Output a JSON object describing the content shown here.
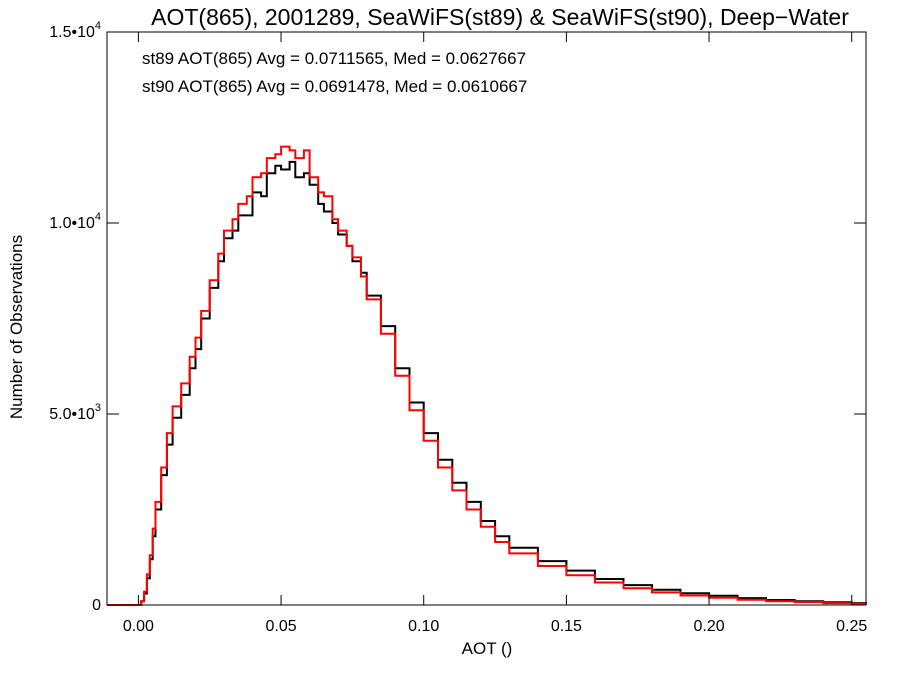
{
  "chart_data": {
    "type": "line",
    "title": "AOT(865), 2001289, SeaWiFS(st89) & SeaWiFS(st90), Deep−Water",
    "xlabel": "AOT ()",
    "ylabel": "Number of Observations",
    "xlim": [
      -0.011,
      0.255
    ],
    "ylim": [
      0,
      15000
    ],
    "x_ticks": [
      {
        "value": 0.0,
        "label": "0.00"
      },
      {
        "value": 0.05,
        "label": "0.05"
      },
      {
        "value": 0.1,
        "label": "0.10"
      },
      {
        "value": 0.15,
        "label": "0.15"
      },
      {
        "value": 0.2,
        "label": "0.20"
      },
      {
        "value": 0.25,
        "label": "0.25"
      }
    ],
    "y_ticks": [
      {
        "value": 0,
        "mant": "0",
        "exp": ""
      },
      {
        "value": 5000,
        "mant": "5.0•10",
        "exp": "3"
      },
      {
        "value": 10000,
        "mant": "1.0•10",
        "exp": "4"
      },
      {
        "value": 15000,
        "mant": "1.5•10",
        "exp": "4"
      }
    ],
    "grid": false,
    "annotations": [
      {
        "text": "st89 AOT(865) Avg = 0.0711565, Med = 0.0627667",
        "color": "#000000"
      },
      {
        "text": "st90 AOT(865) Avg = 0.0691478, Med = 0.0610667",
        "color": "#ff0000"
      }
    ],
    "series": [
      {
        "color": "#000000",
        "x": [
          -0.011,
          -0.001,
          0.001,
          0.002,
          0.003,
          0.004,
          0.005,
          0.006,
          0.008,
          0.01,
          0.012,
          0.015,
          0.018,
          0.02,
          0.022,
          0.025,
          0.028,
          0.03,
          0.033,
          0.035,
          0.038,
          0.04,
          0.043,
          0.045,
          0.048,
          0.05,
          0.053,
          0.055,
          0.058,
          0.06,
          0.063,
          0.065,
          0.068,
          0.07,
          0.073,
          0.075,
          0.078,
          0.08,
          0.085,
          0.09,
          0.095,
          0.1,
          0.105,
          0.11,
          0.115,
          0.12,
          0.125,
          0.13,
          0.14,
          0.15,
          0.16,
          0.17,
          0.18,
          0.19,
          0.2,
          0.21,
          0.22,
          0.23,
          0.24,
          0.25,
          0.255
        ],
        "y": [
          0,
          0,
          100,
          300,
          700,
          1200,
          1800,
          2500,
          3400,
          4200,
          4900,
          5500,
          6200,
          6700,
          7500,
          8300,
          9000,
          9600,
          9800,
          10200,
          10200,
          10800,
          10700,
          11300,
          11500,
          11400,
          11600,
          11200,
          11300,
          11000,
          10500,
          10300,
          10000,
          9700,
          9400,
          9000,
          8700,
          8100,
          7300,
          6200,
          5300,
          4500,
          3800,
          3200,
          2700,
          2200,
          1800,
          1500,
          1150,
          900,
          680,
          520,
          400,
          310,
          240,
          180,
          130,
          100,
          70,
          50,
          30
        ]
      },
      {
        "color": "#ff0000",
        "x": [
          -0.011,
          -0.001,
          0.001,
          0.002,
          0.003,
          0.004,
          0.005,
          0.006,
          0.008,
          0.01,
          0.012,
          0.015,
          0.018,
          0.02,
          0.022,
          0.025,
          0.028,
          0.03,
          0.033,
          0.035,
          0.038,
          0.04,
          0.043,
          0.045,
          0.048,
          0.05,
          0.053,
          0.055,
          0.058,
          0.06,
          0.063,
          0.065,
          0.068,
          0.07,
          0.073,
          0.075,
          0.078,
          0.08,
          0.085,
          0.09,
          0.095,
          0.1,
          0.105,
          0.11,
          0.115,
          0.12,
          0.125,
          0.13,
          0.14,
          0.15,
          0.16,
          0.17,
          0.18,
          0.19,
          0.2,
          0.21,
          0.22,
          0.23,
          0.24,
          0.25,
          0.255
        ],
        "y": [
          0,
          0,
          100,
          350,
          800,
          1300,
          2000,
          2700,
          3600,
          4500,
          5200,
          5800,
          6500,
          7000,
          7700,
          8500,
          9200,
          9800,
          10100,
          10500,
          10700,
          11200,
          11300,
          11700,
          11800,
          12000,
          11900,
          11700,
          11900,
          11200,
          10800,
          10700,
          10100,
          9800,
          9400,
          9100,
          8600,
          8000,
          7100,
          6000,
          5100,
          4300,
          3600,
          3000,
          2500,
          2050,
          1650,
          1350,
          1020,
          780,
          590,
          440,
          330,
          250,
          190,
          140,
          100,
          75,
          50,
          35,
          20
        ]
      }
    ]
  }
}
